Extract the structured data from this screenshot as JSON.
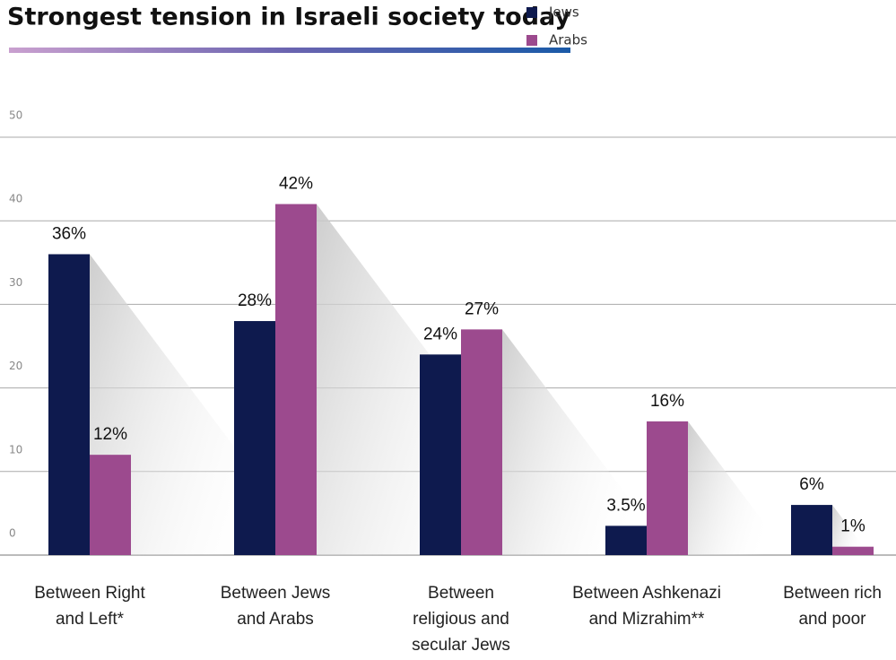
{
  "chart_data": {
    "type": "bar",
    "title": "Strongest tension in Israeli society today",
    "categories": [
      "Between Right\nand Left*",
      "Between Jews\nand Arabs",
      "Between\nreligious and\nsecular Jews",
      "Between Ashkenazi\nand Mizrahim**",
      "Between rich\nand poor"
    ],
    "series": [
      {
        "name": "Jews",
        "color": "#0e1a4e",
        "values": [
          36,
          28,
          24,
          3.5,
          6
        ],
        "value_labels": [
          "36%",
          "28%",
          "24%",
          "3.5%",
          "6%"
        ]
      },
      {
        "name": "Arabs",
        "color": "#9c4a8e",
        "values": [
          12,
          42,
          27,
          16,
          1
        ],
        "value_labels": [
          "12%",
          "42%",
          "27%",
          "16%",
          "1%"
        ]
      }
    ],
    "ylim": [
      0,
      50
    ],
    "yticks": [
      0,
      10,
      20,
      30,
      40,
      50
    ],
    "grid": true,
    "legend": "top-right"
  }
}
